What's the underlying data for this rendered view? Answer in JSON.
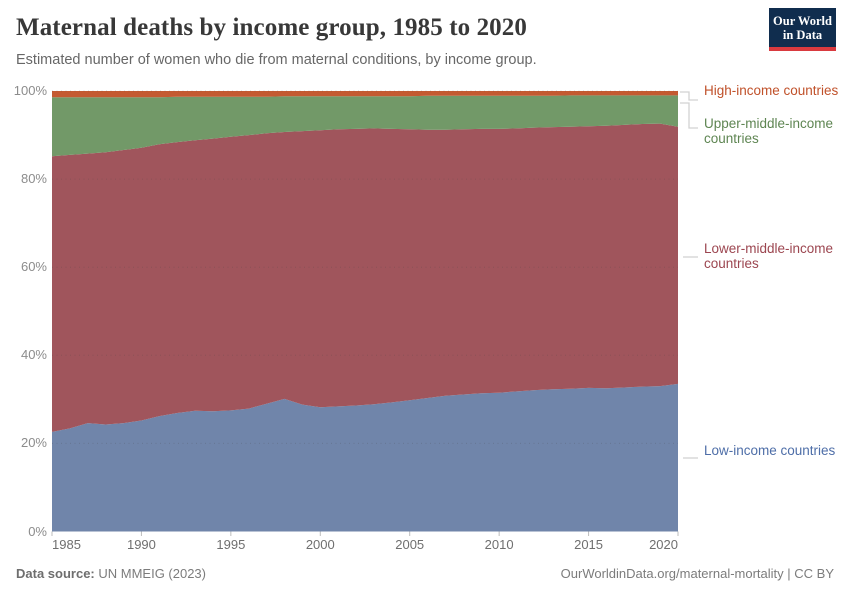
{
  "header": {
    "title": "Maternal deaths by income group, 1985 to 2020",
    "subtitle": "Estimated number of women who die from maternal conditions, by income group."
  },
  "logo": {
    "line1": "Our World",
    "line2": "in Data",
    "bg_color": "#102d4e",
    "bar_color": "#d93a3f"
  },
  "chart_data": {
    "type": "area",
    "stacking": "percent",
    "title": "Maternal deaths by income group, 1985 to 2020",
    "xlabel": "",
    "ylabel": "",
    "xlim": [
      1985,
      2020
    ],
    "ylim": [
      0,
      100
    ],
    "grid": "horizontal-dotted",
    "legend_position": "right",
    "x": [
      1985,
      1986,
      1987,
      1988,
      1989,
      1990,
      1991,
      1992,
      1993,
      1994,
      1995,
      1996,
      1997,
      1998,
      1999,
      2000,
      2001,
      2002,
      2003,
      2004,
      2005,
      2006,
      2007,
      2008,
      2009,
      2010,
      2011,
      2012,
      2013,
      2014,
      2015,
      2016,
      2017,
      2018,
      2019,
      2020
    ],
    "x_tick_values": [
      1985,
      1990,
      1995,
      2000,
      2005,
      2010,
      2015,
      2020
    ],
    "y_tick_values": [
      0,
      20,
      40,
      60,
      80,
      100
    ],
    "y_tick_labels": [
      "0%",
      "20%",
      "40%",
      "60%",
      "80%",
      "100%"
    ],
    "series": [
      {
        "name": "Low-income countries",
        "fill": "#7085aa",
        "label_color": "#4e6ea8",
        "values": [
          22.6,
          23.4,
          24.6,
          24.3,
          24.6,
          25.2,
          26.2,
          26.9,
          27.4,
          27.3,
          27.5,
          27.9,
          29.0,
          30.1,
          28.8,
          28.2,
          28.4,
          28.6,
          28.9,
          29.3,
          29.8,
          30.3,
          30.8,
          31.1,
          31.4,
          31.5,
          31.8,
          32.1,
          32.3,
          32.4,
          32.6,
          32.5,
          32.7,
          32.9,
          33.0,
          33.5
        ]
      },
      {
        "name": "Lower-middle-income countries",
        "fill": "#a0555c",
        "label_color": "#9c4650",
        "values": [
          62.6,
          62.1,
          61.2,
          61.8,
          62.0,
          61.9,
          61.7,
          61.5,
          61.4,
          61.9,
          62.1,
          62.1,
          61.4,
          60.6,
          62.1,
          62.9,
          62.9,
          62.8,
          62.6,
          62.1,
          61.5,
          60.9,
          60.4,
          60.2,
          60.0,
          59.9,
          59.7,
          59.6,
          59.5,
          59.5,
          59.4,
          59.6,
          59.6,
          59.6,
          59.6,
          58.4
        ]
      },
      {
        "name": "Upper-middle-income countries",
        "fill": "#729968",
        "label_color": "#5e8552",
        "values": [
          13.4,
          13.1,
          12.8,
          12.5,
          12.0,
          11.5,
          10.7,
          10.3,
          9.9,
          9.5,
          9.1,
          8.7,
          8.3,
          8.1,
          7.9,
          7.7,
          7.5,
          7.4,
          7.3,
          7.4,
          7.5,
          7.7,
          7.7,
          7.6,
          7.5,
          7.5,
          7.4,
          7.2,
          7.1,
          7.1,
          7.0,
          6.9,
          6.7,
          6.5,
          6.4,
          7.1
        ]
      },
      {
        "name": "High-income countries",
        "fill": "#c45a31",
        "label_color": "#c0512a",
        "values": [
          1.4,
          1.4,
          1.4,
          1.4,
          1.4,
          1.4,
          1.4,
          1.3,
          1.3,
          1.3,
          1.3,
          1.3,
          1.3,
          1.2,
          1.2,
          1.2,
          1.2,
          1.2,
          1.2,
          1.2,
          1.2,
          1.1,
          1.1,
          1.1,
          1.1,
          1.1,
          1.1,
          1.1,
          1.1,
          1.0,
          1.0,
          1.0,
          1.0,
          1.0,
          1.0,
          1.0
        ]
      }
    ]
  },
  "footer": {
    "source_label": "Data source:",
    "source_value": " UN MMEIG (2023)",
    "attribution": "OurWorldinData.org/maternal-mortality | CC BY"
  }
}
